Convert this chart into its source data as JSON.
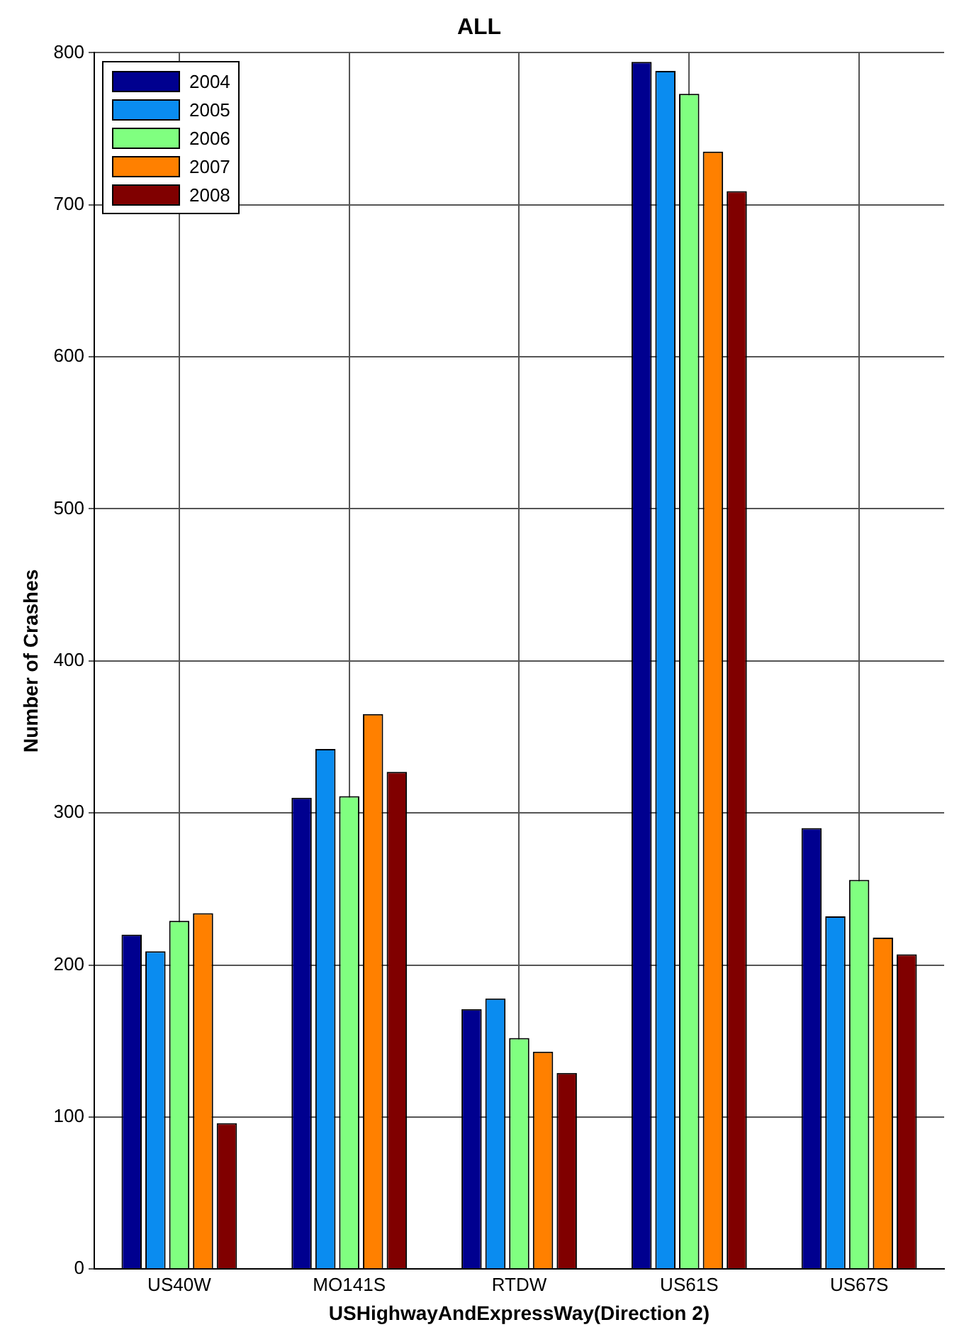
{
  "chart_data": {
    "type": "bar",
    "title": "ALL",
    "xlabel": "USHighwayAndExpressWay(Direction 2)",
    "ylabel": "Number of Crashes",
    "categories": [
      "US40W",
      "MO141S",
      "RTDW",
      "US61S",
      "US67S"
    ],
    "series": [
      {
        "name": "2004",
        "color": "#00008f",
        "values": [
          220,
          310,
          171,
          794,
          290
        ]
      },
      {
        "name": "2005",
        "color": "#0a8cf0",
        "values": [
          209,
          342,
          178,
          788,
          232
        ]
      },
      {
        "name": "2006",
        "color": "#80ff80",
        "values": [
          229,
          311,
          152,
          773,
          256
        ]
      },
      {
        "name": "2007",
        "color": "#ff8000",
        "values": [
          234,
          365,
          143,
          735,
          218
        ]
      },
      {
        "name": "2008",
        "color": "#800000",
        "values": [
          96,
          327,
          129,
          709,
          207
        ]
      }
    ],
    "ylim": [
      0,
      800
    ],
    "yticks": [
      0,
      100,
      200,
      300,
      400,
      500,
      600,
      700,
      800
    ],
    "grid": true,
    "legend": "top left"
  }
}
